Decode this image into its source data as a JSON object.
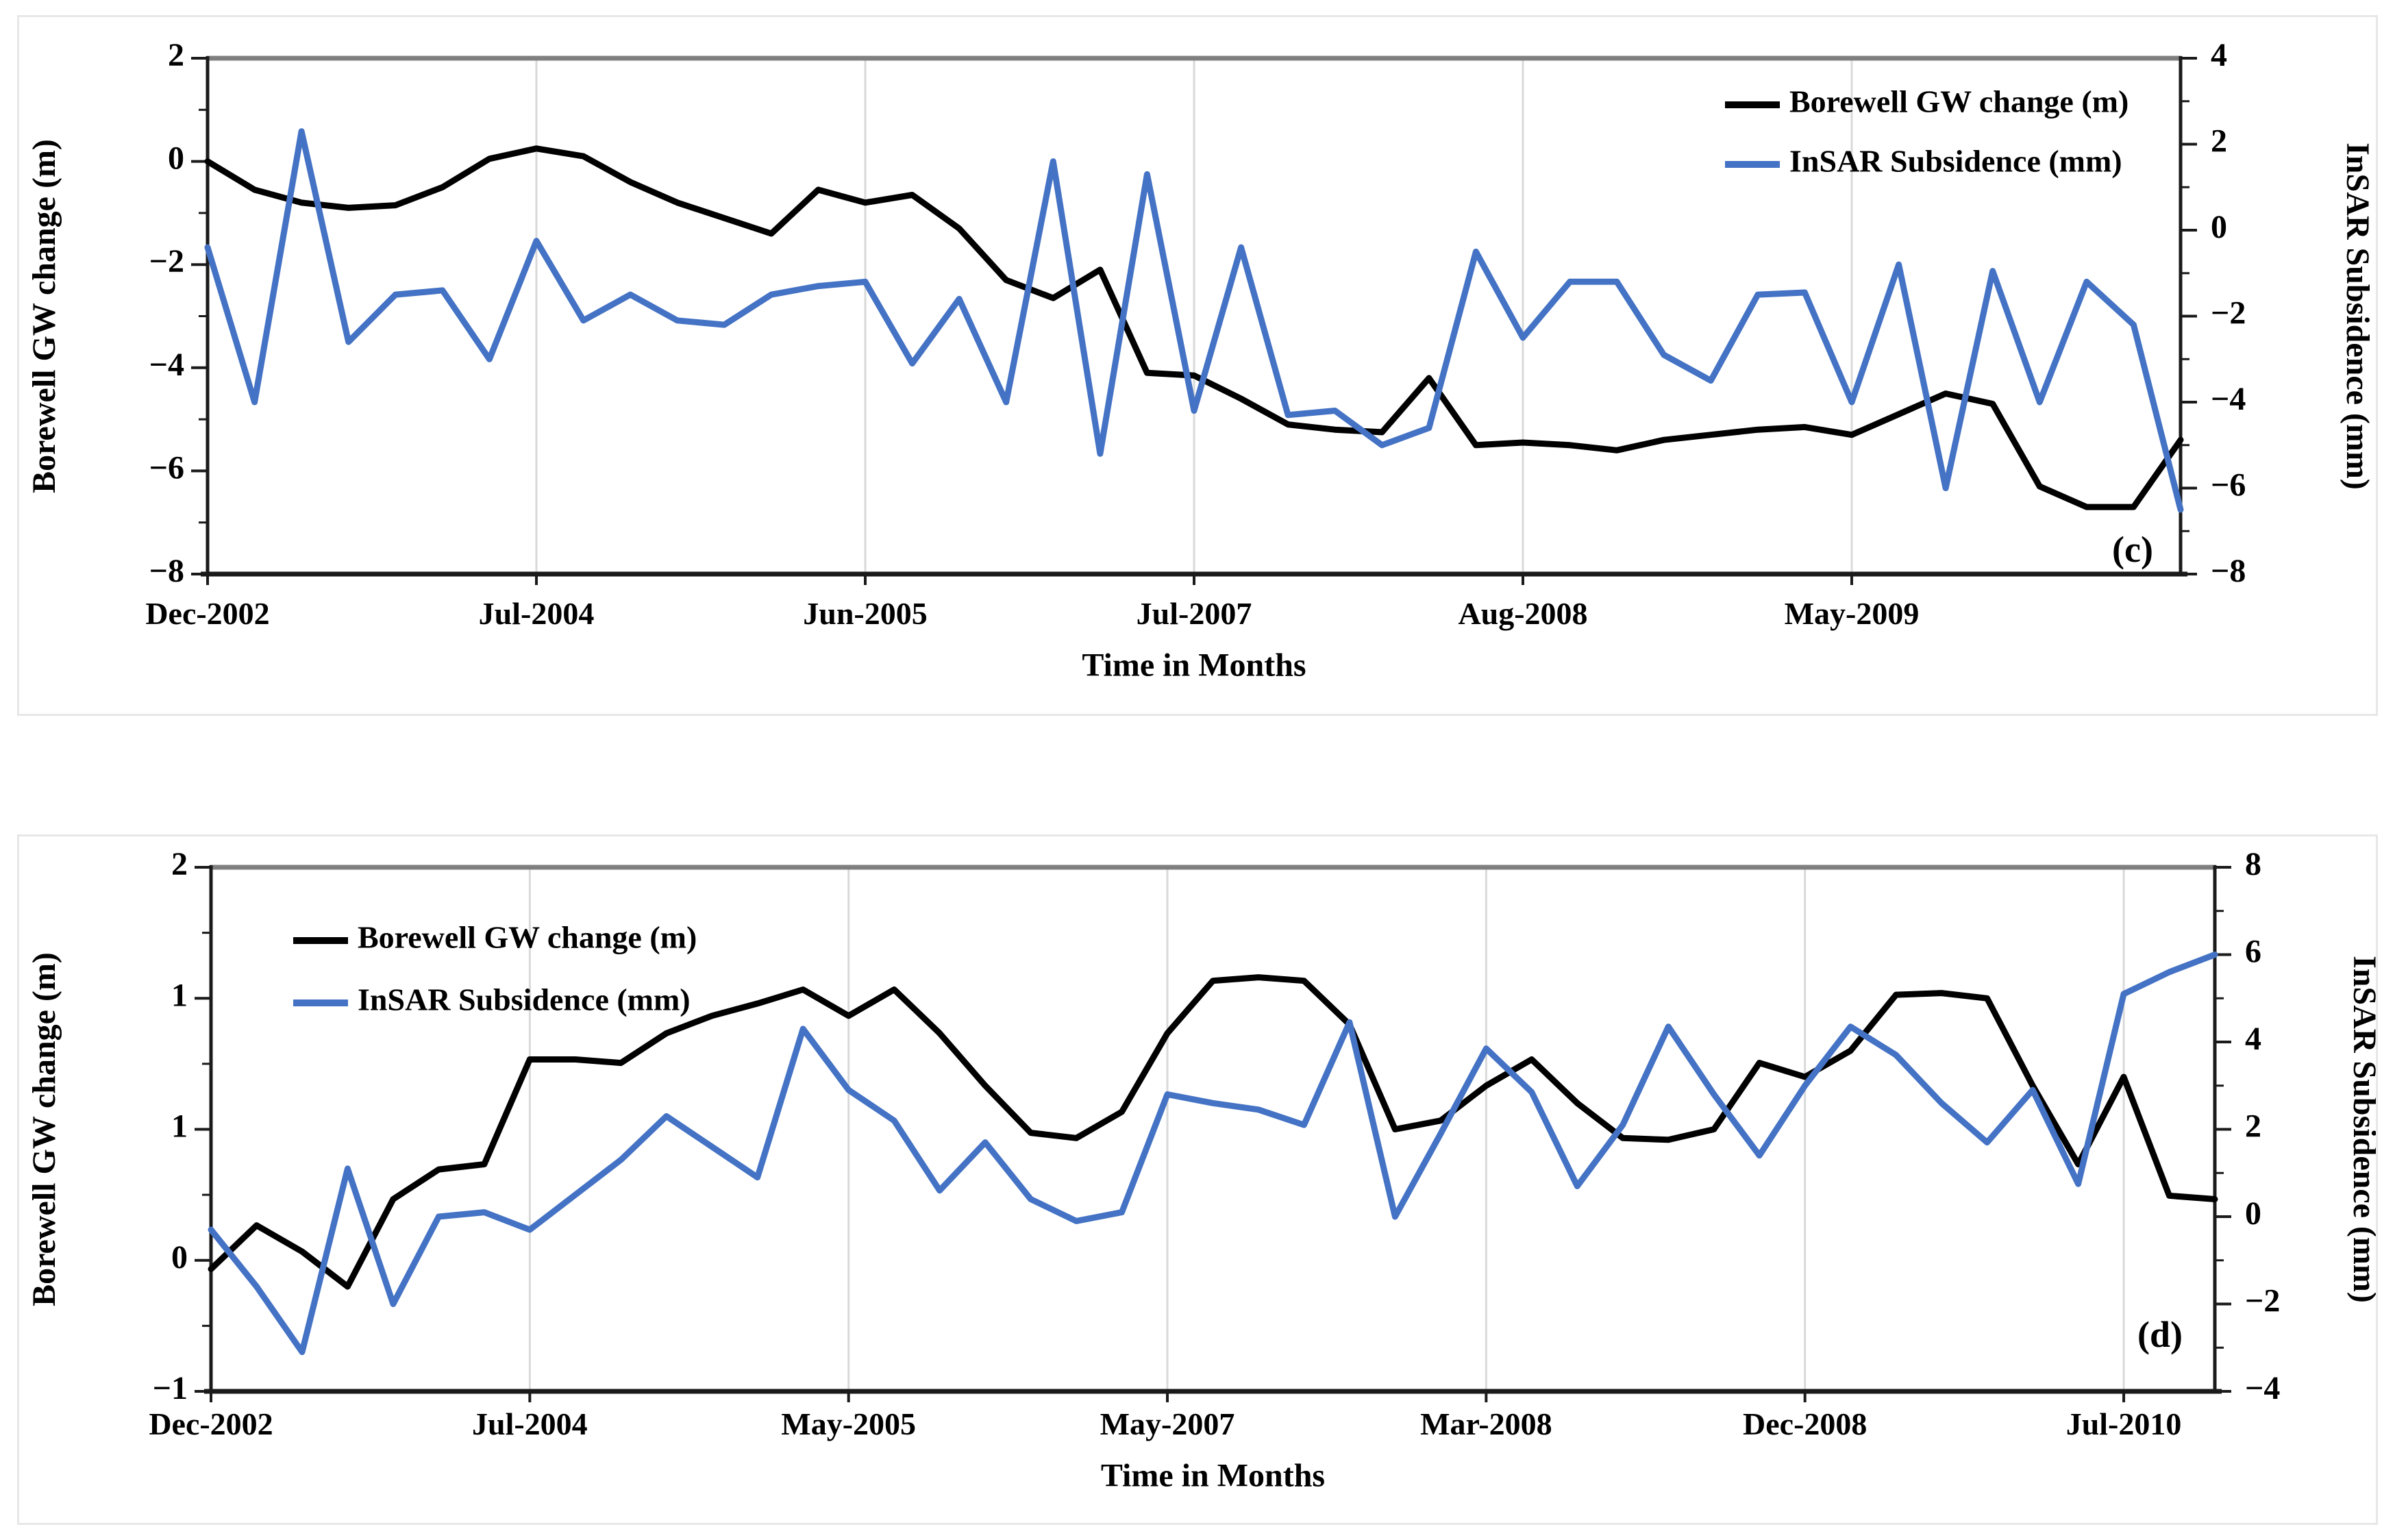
{
  "page": {
    "background": "#ffffff",
    "description": "Two stacked time-series panels comparing borewell groundwater change with InSAR subsidence"
  },
  "legend_labels": {
    "borewell": "Borewell GW change (m)",
    "insar": "InSAR Subsidence (mm)"
  },
  "colors": {
    "borewell_line": "#000000",
    "insar_line": "#4472C4",
    "gridline": "#d9d9d9",
    "frame_top": "#7f7f7f",
    "axis": "#1a1a1a"
  },
  "chart_data": [
    {
      "id": "c",
      "type": "line",
      "panel_label": "(c)",
      "title": "",
      "xlabel": "Time in Months",
      "x_tick_labels": [
        "Dec-2002",
        "Jul-2004",
        "Jun-2005",
        "Jul-2007",
        "Aug-2008",
        "May-2009"
      ],
      "x_tick_indices": [
        0,
        7,
        14,
        21,
        28,
        35
      ],
      "n_points": 43,
      "left_axis": {
        "title": "Borewell GW change (m)",
        "range": [
          -8,
          2
        ],
        "major_values": [
          2,
          0,
          -2,
          -4,
          -6,
          -8
        ],
        "major_labels": [
          "2",
          "0",
          "−2",
          "−4",
          "−6",
          "−8"
        ],
        "minor_values": [
          1,
          -1,
          -3,
          -5,
          -7
        ]
      },
      "right_axis": {
        "title": "InSAR Subsidence (mm)",
        "range": [
          -8,
          4
        ],
        "major_values": [
          4,
          2,
          0,
          -2,
          -4,
          -6,
          -8
        ],
        "major_labels": [
          "4",
          "2",
          "0",
          "−2",
          "−4",
          "−6",
          "−8"
        ],
        "minor_values": [
          3,
          1,
          -1,
          -3,
          -5,
          -7
        ]
      },
      "legend_position": "top-right",
      "series": [
        {
          "name": "Borewell GW change (m)",
          "axis": "left",
          "color": "#000000",
          "values": [
            0.0,
            -0.55,
            -0.8,
            -0.9,
            -0.85,
            -0.5,
            0.05,
            0.25,
            0.1,
            -0.4,
            -0.8,
            -1.1,
            -1.4,
            -0.55,
            -0.8,
            -0.65,
            -1.3,
            -2.3,
            -2.65,
            -2.1,
            -4.1,
            -4.15,
            -4.6,
            -5.1,
            -5.2,
            -5.25,
            -4.2,
            -5.5,
            -5.45,
            -5.5,
            -5.6,
            -5.4,
            -5.3,
            -5.2,
            -5.15,
            -5.3,
            -4.9,
            -4.5,
            -4.7,
            -6.3,
            -6.7,
            -6.7,
            -5.4
          ]
        },
        {
          "name": "InSAR Subsidence (mm)",
          "axis": "right",
          "color": "#4472C4",
          "values": [
            -0.4,
            -4.0,
            2.3,
            -2.6,
            -1.5,
            -1.4,
            -3.0,
            -0.25,
            -2.1,
            -1.5,
            -2.1,
            -2.2,
            -1.5,
            -1.3,
            -1.2,
            -3.1,
            -1.6,
            -4.0,
            1.6,
            -5.2,
            1.3,
            -4.2,
            -0.4,
            -4.3,
            -4.2,
            -5.0,
            -4.6,
            -0.5,
            -2.5,
            -1.2,
            -1.2,
            -2.9,
            -3.5,
            -1.5,
            -1.45,
            -4.0,
            -0.8,
            -6.0,
            -0.95,
            -4.0,
            -1.2,
            -2.2,
            -6.5
          ]
        }
      ]
    },
    {
      "id": "d",
      "type": "line",
      "panel_label": "(d)",
      "title": "",
      "xlabel": "Time in Months",
      "x_tick_labels": [
        "Dec-2002",
        "Jul-2004",
        "May-2005",
        "May-2007",
        "Mar-2008",
        "Dec-2008",
        "Jul-2010"
      ],
      "x_tick_indices": [
        0,
        7,
        14,
        21,
        28,
        35,
        42
      ],
      "n_points": 45,
      "left_axis": {
        "title": "Borewell GW change (m)",
        "range": [
          -1,
          2
        ],
        "major_values": [
          2,
          1.25,
          0.5,
          -0.25,
          -1
        ],
        "major_labels": [
          "2",
          "1",
          "1",
          "0",
          "−1"
        ],
        "minor_values": [
          1.625,
          0.875,
          0.125,
          -0.625
        ]
      },
      "right_axis": {
        "title": "InSAR Subsidence (mm)",
        "range": [
          -4,
          8
        ],
        "major_values": [
          8,
          6,
          4,
          2,
          0,
          -2,
          -4
        ],
        "major_labels": [
          "8",
          "6",
          "4",
          "2",
          "0",
          "−2",
          "−4"
        ],
        "minor_values": [
          7,
          5,
          3,
          1,
          -1,
          -3
        ]
      },
      "legend_position": "top-left",
      "series": [
        {
          "name": "Borewell GW change (m)",
          "axis": "left",
          "color": "#000000",
          "values": [
            -0.3,
            -0.05,
            -0.2,
            -0.4,
            0.1,
            0.27,
            0.3,
            0.9,
            0.9,
            0.88,
            1.05,
            1.15,
            1.22,
            1.3,
            1.15,
            1.3,
            1.05,
            0.75,
            0.48,
            0.45,
            0.6,
            1.05,
            1.35,
            1.37,
            1.35,
            1.1,
            0.5,
            0.55,
            0.75,
            0.9,
            0.65,
            0.45,
            0.44,
            0.5,
            0.88,
            0.8,
            0.95,
            1.27,
            1.28,
            1.25,
            0.75,
            0.3,
            0.8,
            0.12,
            0.1
          ]
        },
        {
          "name": "InSAR Subsidence (mm)",
          "axis": "right",
          "color": "#4472C4",
          "values": [
            -0.3,
            -1.6,
            -3.1,
            1.1,
            -2.0,
            0.0,
            0.1,
            -0.3,
            0.5,
            1.3,
            2.3,
            1.6,
            0.9,
            4.3,
            2.9,
            2.2,
            0.6,
            1.7,
            0.4,
            -0.1,
            0.1,
            2.8,
            2.6,
            2.45,
            2.1,
            4.45,
            0.0,
            1.9,
            3.85,
            2.85,
            0.7,
            2.1,
            4.35,
            2.8,
            1.4,
            3.0,
            4.35,
            3.7,
            2.6,
            1.7,
            2.9,
            0.75,
            5.1,
            5.6,
            6.0
          ]
        }
      ]
    }
  ]
}
